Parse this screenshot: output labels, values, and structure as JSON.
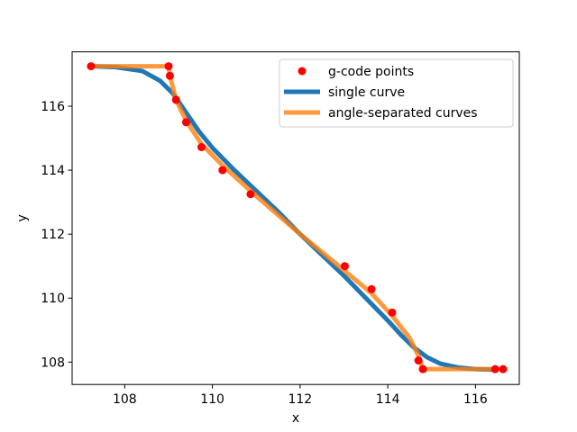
{
  "chart_data": {
    "type": "scatter",
    "title": "",
    "xlabel": "x",
    "ylabel": "y",
    "xlim": [
      106.8,
      117.0
    ],
    "ylim": [
      107.3,
      117.7
    ],
    "xticks": [
      108,
      110,
      112,
      114,
      116
    ],
    "yticks": [
      108,
      110,
      112,
      114,
      116
    ],
    "grid": false,
    "legend_position": "upper right",
    "series": [
      {
        "name": "g-code points",
        "kind": "scatter",
        "color": "#ff0000",
        "x": [
          107.23,
          109.0,
          109.03,
          109.17,
          109.4,
          109.75,
          110.23,
          110.87,
          113.02,
          113.63,
          114.1,
          114.7,
          114.8,
          116.45,
          116.63
        ],
        "y": [
          117.25,
          117.25,
          116.95,
          116.2,
          115.5,
          114.72,
          114.0,
          113.25,
          111.0,
          110.28,
          109.55,
          108.05,
          107.78,
          107.78,
          107.78
        ]
      },
      {
        "name": "single curve",
        "kind": "line",
        "color": "#1f77b4",
        "x": [
          107.23,
          107.8,
          108.4,
          108.8,
          109.1,
          109.4,
          109.7,
          110.0,
          110.5,
          111.0,
          111.5,
          112.0,
          112.5,
          113.0,
          113.5,
          114.0,
          114.3,
          114.6,
          114.9,
          115.2,
          115.6,
          116.0,
          116.45
        ],
        "y": [
          117.25,
          117.22,
          117.1,
          116.8,
          116.4,
          115.8,
          115.2,
          114.7,
          114.0,
          113.35,
          112.7,
          112.0,
          111.35,
          110.7,
          110.0,
          109.3,
          108.85,
          108.45,
          108.15,
          107.95,
          107.83,
          107.78,
          107.76
        ]
      },
      {
        "name": "angle-separated curves",
        "kind": "line",
        "color": "#ff7f0e",
        "x": [
          107.23,
          109.0,
          109.03,
          109.17,
          109.4,
          109.75,
          110.23,
          110.87,
          112.0,
          113.02,
          113.63,
          114.1,
          114.5,
          114.7,
          114.8,
          116.45
        ],
        "y": [
          117.25,
          117.25,
          116.95,
          116.2,
          115.55,
          114.82,
          114.15,
          113.35,
          112.0,
          110.85,
          110.15,
          109.45,
          108.75,
          108.2,
          107.78,
          107.78
        ]
      }
    ]
  }
}
